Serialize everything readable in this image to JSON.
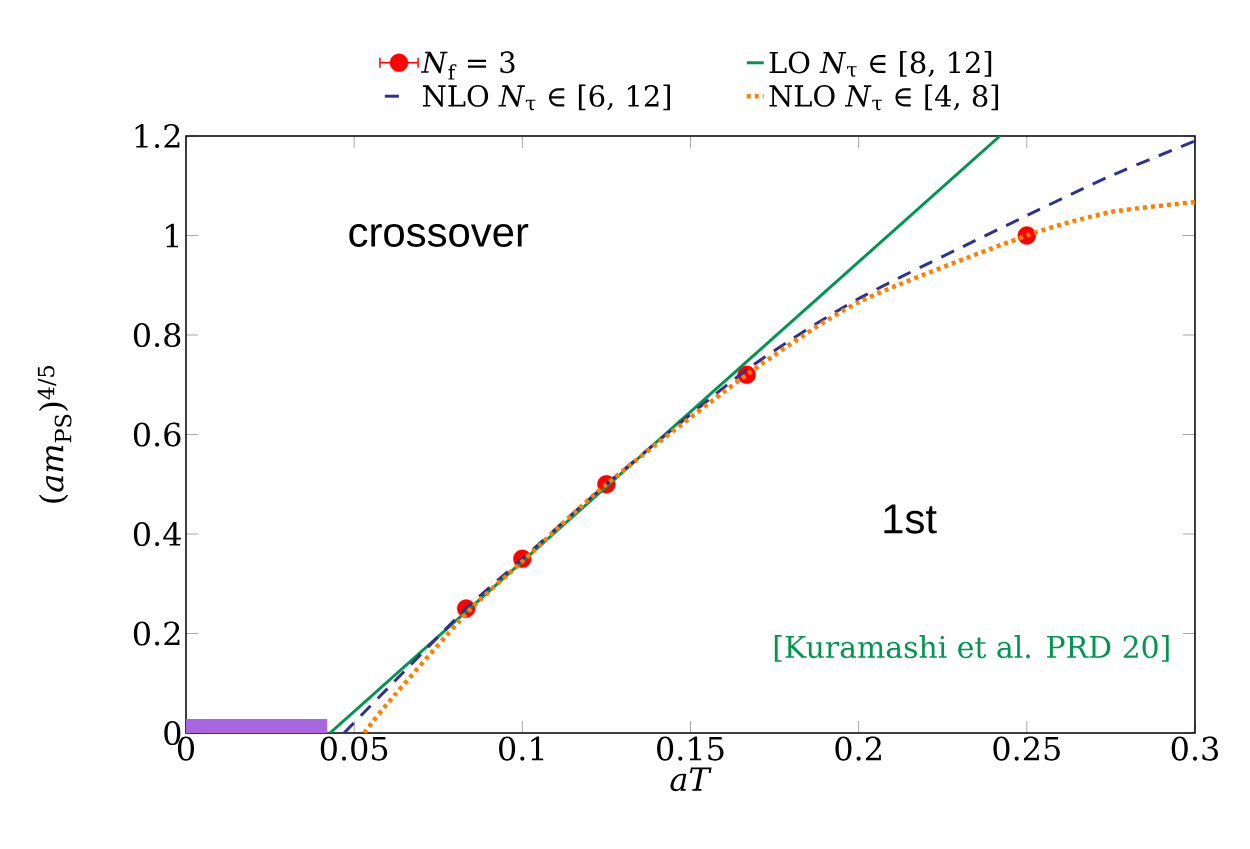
{
  "chart_data": {
    "type": "line",
    "xlabel": "*aT*",
    "ylabel": "(*am*$_{PS}$)$^{4/5}$",
    "xlim": [
      0,
      0.3
    ],
    "ylim": [
      0,
      1.2
    ],
    "xticks": [
      0,
      0.05,
      0.1,
      0.15,
      0.2,
      0.25,
      0.3
    ],
    "yticks": [
      0,
      0.2,
      0.4,
      0.6,
      0.8,
      1,
      1.2
    ],
    "legend": "top",
    "series": [
      {
        "name": "*N*$_{f}$ = 3",
        "type": "scatter",
        "marker": "circle",
        "color": "#ff0000",
        "x": [
          0.0833,
          0.1,
          0.125,
          0.1667,
          0.25
        ],
        "values": [
          0.25,
          0.35,
          0.5,
          0.72,
          1.0
        ]
      },
      {
        "name": "LO *N*$_{τ}$ ∈ [8, 12]",
        "type": "line",
        "line_style": "solid",
        "color": "#009650",
        "x": [
          0.0428,
          0.242
        ],
        "values": [
          0,
          1.2
        ]
      },
      {
        "name": "NLO *N*$_{τ}$ ∈ [6, 12]",
        "type": "line",
        "line_style": "dashed",
        "color": "#2e3192",
        "x": [
          0.047,
          0.06,
          0.0833,
          0.1,
          0.125,
          0.1667,
          0.2,
          0.25,
          0.275,
          0.3
        ],
        "values": [
          0,
          0.09,
          0.25,
          0.35,
          0.5,
          0.73,
          0.873,
          1.04,
          1.12,
          1.19
        ]
      },
      {
        "name": "NLO *N*$_{τ}$ ∈ [4, 8]",
        "type": "line",
        "line_style": "dotted",
        "color": "#ff8000",
        "x": [
          0.053,
          0.06,
          0.0833,
          0.1,
          0.125,
          0.1667,
          0.2,
          0.25,
          0.275,
          0.3
        ],
        "values": [
          0,
          0.06,
          0.24,
          0.345,
          0.5,
          0.72,
          0.866,
          1.0,
          1.047,
          1.067
        ]
      },
      {
        "type": "line",
        "line_style": "solid",
        "color": "#a866e0",
        "x": [
          0,
          0.042
        ],
        "values": [
          0,
          0
        ]
      }
    ],
    "annotations": [
      "crossover",
      "1st",
      "[Kuramashi et al. PRD 20]"
    ]
  }
}
